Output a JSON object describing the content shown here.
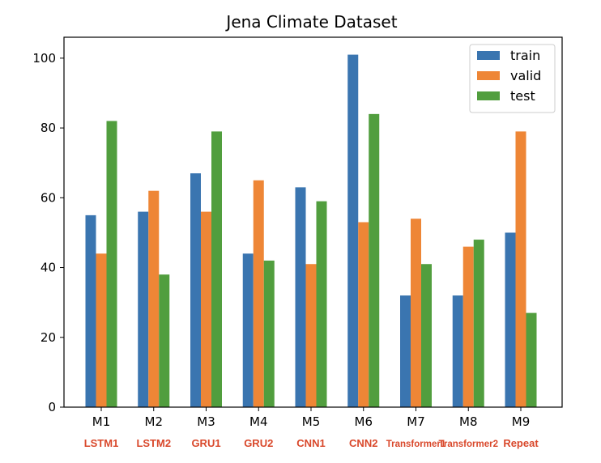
{
  "chart_data": {
    "type": "bar",
    "title": "Jena Climate Dataset",
    "xlabel": "",
    "ylabel": "",
    "categories": [
      "M1",
      "M2",
      "M3",
      "M4",
      "M5",
      "M6",
      "M7",
      "M8",
      "M9"
    ],
    "model_names": [
      "LSTM1",
      "LSTM2",
      "GRU1",
      "GRU2",
      "CNN1",
      "CNN2",
      "Transformer1",
      "Transformer2",
      "Repeat"
    ],
    "series": [
      {
        "name": "train",
        "color": "#3a75b0",
        "values": [
          55,
          56,
          67,
          44,
          63,
          101,
          32,
          32,
          50
        ]
      },
      {
        "name": "valid",
        "color": "#ee8636",
        "values": [
          44,
          62,
          56,
          65,
          41,
          53,
          54,
          46,
          79
        ]
      },
      {
        "name": "test",
        "color": "#519e3e",
        "values": [
          82,
          38,
          79,
          42,
          59,
          84,
          41,
          48,
          27
        ]
      }
    ],
    "ylim": [
      0,
      106
    ],
    "yticks": [
      0,
      20,
      40,
      60,
      80,
      100
    ],
    "legend": "top-right",
    "grid": false
  }
}
